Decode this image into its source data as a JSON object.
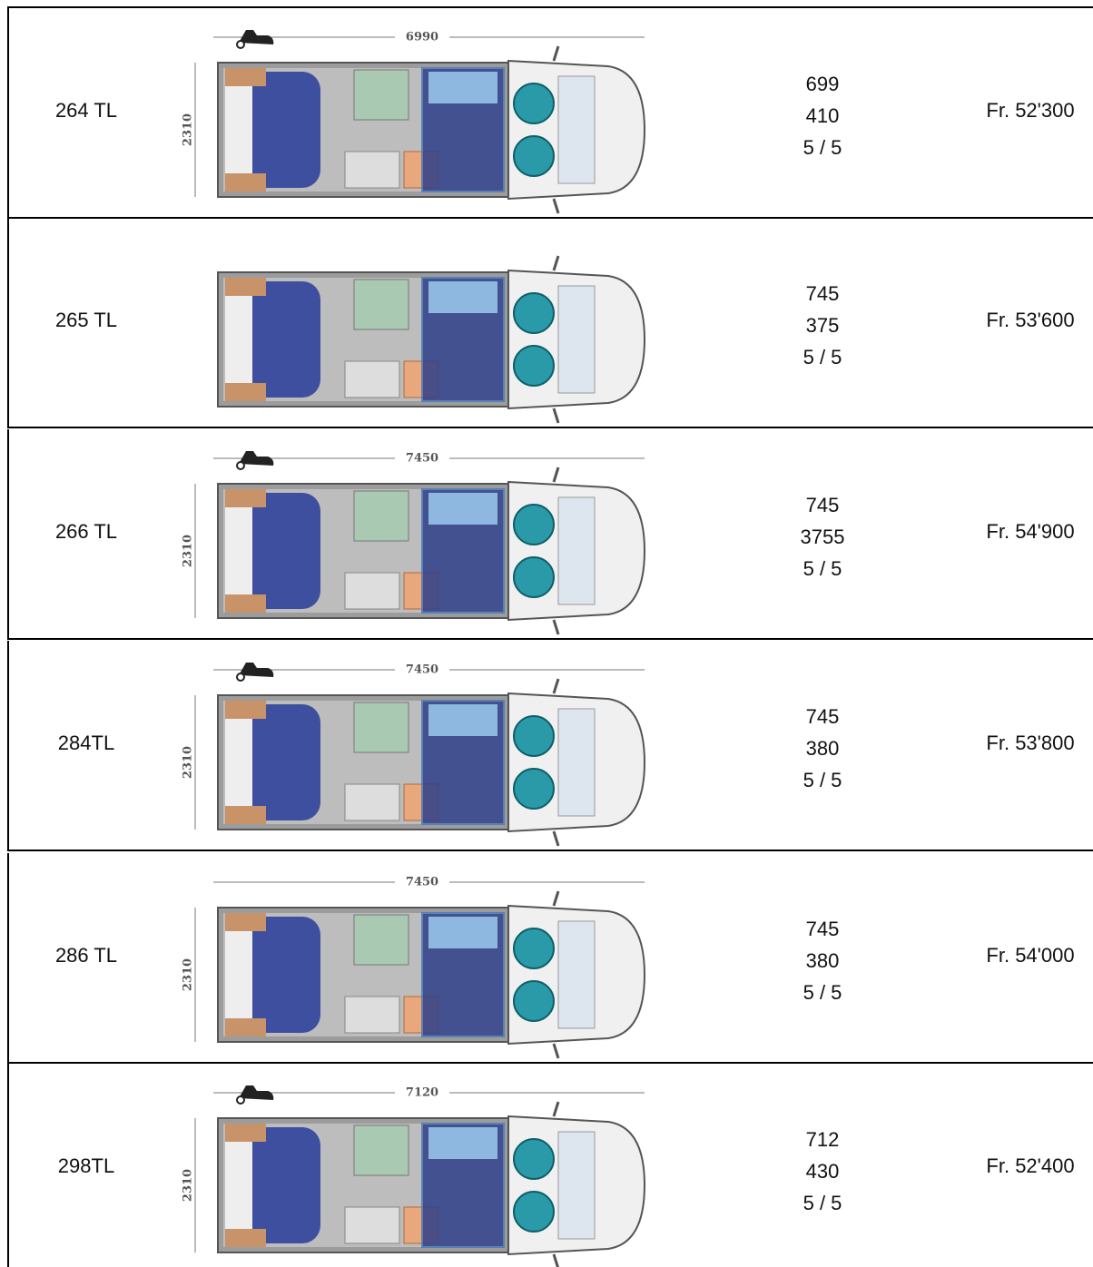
{
  "table": {
    "rows": [
      {
        "model": "264 TL",
        "plan": {
          "length": "6990",
          "width": "2310"
        },
        "specs": [
          "699",
          "410",
          "5 / 5"
        ],
        "price": "Fr. 52'300"
      },
      {
        "model": "265 TL",
        "specs": [
          "745",
          "375",
          "5 / 5"
        ],
        "price": "Fr. 53'600"
      },
      {
        "model": "266 TL",
        "plan": {
          "length": "7450",
          "width": "2310"
        },
        "specs": [
          "745",
          "3755",
          "5 / 5"
        ],
        "price": "Fr. 54'900"
      },
      {
        "model": "284TL",
        "plan": {
          "length": "7450",
          "width": "2310"
        },
        "specs": [
          "745",
          "380",
          "5 / 5"
        ],
        "price": "Fr. 53'800"
      },
      {
        "model": "286 TL",
        "plan": {
          "length": "7450",
          "width": "2310"
        },
        "specs": [
          "745",
          "380",
          "5 / 5"
        ],
        "price": "Fr. 54'000"
      },
      {
        "model": "298TL",
        "plan": {
          "length": "7120",
          "width": "2310"
        },
        "specs": [
          "712",
          "430",
          "5 / 5"
        ],
        "price": "Fr. 52'400"
      }
    ]
  }
}
